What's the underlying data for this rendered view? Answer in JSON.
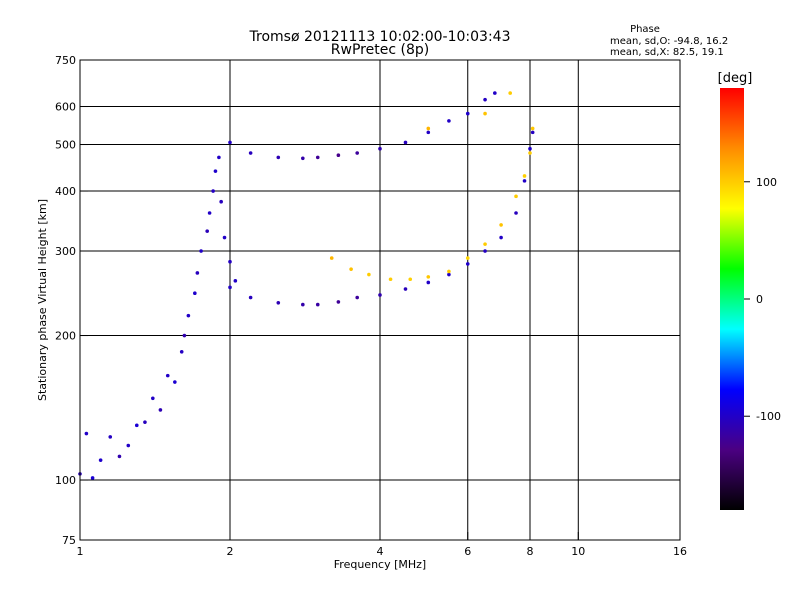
{
  "chart_data": {
    "type": "scatter",
    "title": "Tromsø 20121113 10:02:00-10:03:43",
    "subtitle": "RwPretec (8p)",
    "xlabel": "Frequency [MHz]",
    "ylabel": "Stationary phase Virtual Height [km]",
    "xscale": "log",
    "yscale": "log",
    "xlim": [
      1,
      16
    ],
    "ylim": [
      75,
      750
    ],
    "xticks": [
      "1",
      "2",
      "4",
      "6",
      "8",
      "10",
      "16"
    ],
    "yticks": [
      "75",
      "100",
      "200",
      "300",
      "400",
      "500",
      "600",
      "750"
    ],
    "grid_x": [
      2,
      4,
      6,
      8,
      10
    ],
    "grid_y": [
      100,
      200,
      300,
      400,
      500,
      600
    ],
    "grid": true,
    "phase_stats": {
      "title": "Phase",
      "line_o": "mean, sd,O: -94.8, 16.2",
      "line_x": "mean, sd,X:  82.5, 19.1"
    },
    "colorbar": {
      "label": "[deg]",
      "ticks": [
        "100",
        "0",
        "-100"
      ],
      "range": [
        -180,
        180
      ],
      "colors": [
        "#000000",
        "#4b0082",
        "#0000ff",
        "#00ffff",
        "#00ff00",
        "#ffff00",
        "#ff8c00",
        "#ff0000"
      ]
    },
    "series": [
      {
        "values": [
          [
            1.0,
            103,
            -105
          ],
          [
            1.03,
            125,
            -100
          ],
          [
            1.06,
            101,
            -95
          ],
          [
            1.1,
            110,
            -98
          ],
          [
            1.15,
            123,
            -102
          ],
          [
            1.2,
            112,
            -110
          ],
          [
            1.25,
            118,
            -100
          ],
          [
            1.3,
            130,
            -95
          ],
          [
            1.35,
            132,
            -104
          ],
          [
            1.4,
            148,
            -100
          ],
          [
            1.45,
            140,
            -108
          ],
          [
            1.5,
            165,
            -100
          ],
          [
            1.55,
            160,
            -96
          ],
          [
            1.6,
            185,
            -102
          ],
          [
            1.62,
            200,
            -110
          ],
          [
            1.65,
            220,
            -100
          ],
          [
            1.7,
            245,
            -98
          ],
          [
            1.72,
            270,
            -104
          ],
          [
            1.75,
            300,
            -100
          ],
          [
            1.8,
            330,
            -106
          ],
          [
            1.82,
            360,
            -100
          ],
          [
            1.85,
            400,
            -102
          ],
          [
            1.87,
            440,
            -98
          ],
          [
            1.9,
            470,
            -100
          ],
          [
            1.92,
            380,
            -104
          ],
          [
            1.95,
            320,
            -100
          ],
          [
            2.0,
            285,
            -102
          ],
          [
            2.05,
            260,
            -100
          ]
        ]
      },
      {
        "values": [
          [
            2.0,
            252,
            -100
          ],
          [
            2.2,
            240,
            -104
          ],
          [
            2.5,
            234,
            -108
          ],
          [
            2.8,
            232,
            -112
          ],
          [
            3.0,
            232,
            -115
          ],
          [
            3.3,
            235,
            -120
          ],
          [
            3.6,
            240,
            -118
          ],
          [
            4.0,
            243,
            -110
          ],
          [
            4.5,
            250,
            -105
          ],
          [
            5.0,
            258,
            -100
          ],
          [
            5.5,
            268,
            -100
          ],
          [
            6.0,
            282,
            -98
          ],
          [
            6.5,
            300,
            -102
          ],
          [
            7.0,
            320,
            -100
          ],
          [
            7.5,
            360,
            -104
          ],
          [
            7.8,
            420,
            -100
          ],
          [
            8.0,
            490,
            -100
          ],
          [
            8.1,
            530,
            -102
          ]
        ]
      },
      {
        "values": [
          [
            2.0,
            505,
            -100
          ],
          [
            2.2,
            480,
            -104
          ],
          [
            2.5,
            470,
            -108
          ],
          [
            2.8,
            468,
            -112
          ],
          [
            3.0,
            470,
            -120
          ],
          [
            3.3,
            475,
            -125
          ],
          [
            3.6,
            480,
            -118
          ],
          [
            4.0,
            490,
            -110
          ],
          [
            4.5,
            505,
            -104
          ],
          [
            5.0,
            530,
            -100
          ],
          [
            5.5,
            560,
            -100
          ],
          [
            6.0,
            580,
            -98
          ],
          [
            6.5,
            620,
            -102
          ],
          [
            6.8,
            640,
            -100
          ]
        ]
      },
      {
        "values": [
          [
            3.2,
            290,
            110
          ],
          [
            3.5,
            275,
            105
          ],
          [
            3.8,
            268,
            100
          ],
          [
            4.2,
            262,
            100
          ],
          [
            4.6,
            262,
            98
          ],
          [
            5.0,
            265,
            102
          ],
          [
            5.5,
            272,
            100
          ],
          [
            6.0,
            290,
            96
          ],
          [
            6.5,
            310,
            100
          ],
          [
            7.0,
            340,
            104
          ],
          [
            7.5,
            390,
            100
          ],
          [
            7.8,
            430,
            98
          ],
          [
            8.0,
            480,
            100
          ],
          [
            8.1,
            540,
            102
          ],
          [
            5.0,
            540,
            110
          ],
          [
            6.5,
            580,
            104
          ],
          [
            7.3,
            640,
            100
          ]
        ]
      }
    ]
  }
}
